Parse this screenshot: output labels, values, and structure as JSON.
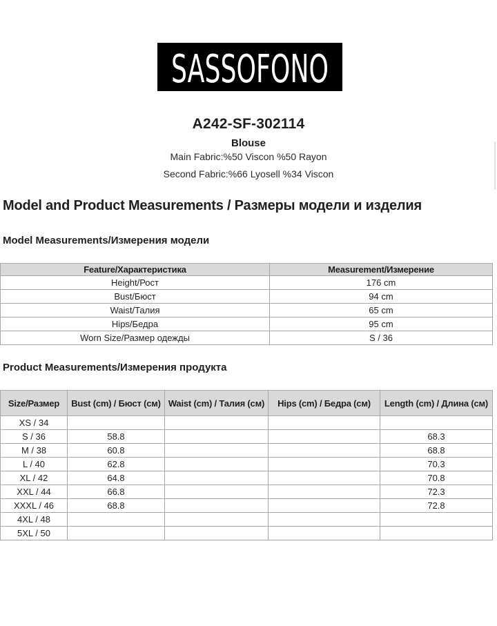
{
  "brand": {
    "logo_text": "SASSOFONO"
  },
  "product": {
    "code": "A242-SF-302114",
    "name": "Blouse",
    "main_fabric": "Main Fabric:%50 Viscon %50 Rayon",
    "second_fabric": "Second Fabric:%66 Lyosell %34 Viscon"
  },
  "headings": {
    "main": "Model and Product Measurements / Размеры модели и изделия",
    "model_section": "Model Measurements/Измерения модели",
    "product_section": "Product Measurements/Измерения продукта"
  },
  "model_table": {
    "headers": [
      "Feature/Характеристика",
      "Measurement/Измерение"
    ],
    "rows": [
      [
        "Height/Рост",
        "176 cm"
      ],
      [
        "Bust/Бюст",
        "94 cm"
      ],
      [
        "Waist/Талия",
        "65 cm"
      ],
      [
        "Hips/Бедра",
        "95 cm"
      ],
      [
        "Worn Size/Размер одежды",
        "S / 36"
      ]
    ]
  },
  "product_table": {
    "headers": [
      "Size/Размер",
      "Bust (cm) / Бюст (см)",
      "Waist (cm) / Талия (см)",
      "Hips (cm) / Бедра (см)",
      "Length (cm) / Длина (см)"
    ],
    "rows": [
      [
        "XS / 34",
        "",
        "",
        "",
        ""
      ],
      [
        "S / 36",
        "58.8",
        "",
        "",
        "68.3"
      ],
      [
        "M / 38",
        "60.8",
        "",
        "",
        "68.8"
      ],
      [
        "L / 40",
        "62.8",
        "",
        "",
        "70.3"
      ],
      [
        "XL / 42",
        "64.8",
        "",
        "",
        "70.8"
      ],
      [
        "XXL / 44",
        "66.8",
        "",
        "",
        "72.3"
      ],
      [
        "XXXL / 46",
        "68.8",
        "",
        "",
        "72.8"
      ],
      [
        "4XL / 48",
        "",
        "",
        "",
        ""
      ],
      [
        "5XL / 50",
        "",
        "",
        "",
        ""
      ]
    ]
  },
  "colors": {
    "logo_bg": "#000000",
    "logo_text": "#ffffff",
    "table_header_bg": "#d9d9d9",
    "table_border": "#a6a6a6",
    "text": "#1f1f1f"
  }
}
